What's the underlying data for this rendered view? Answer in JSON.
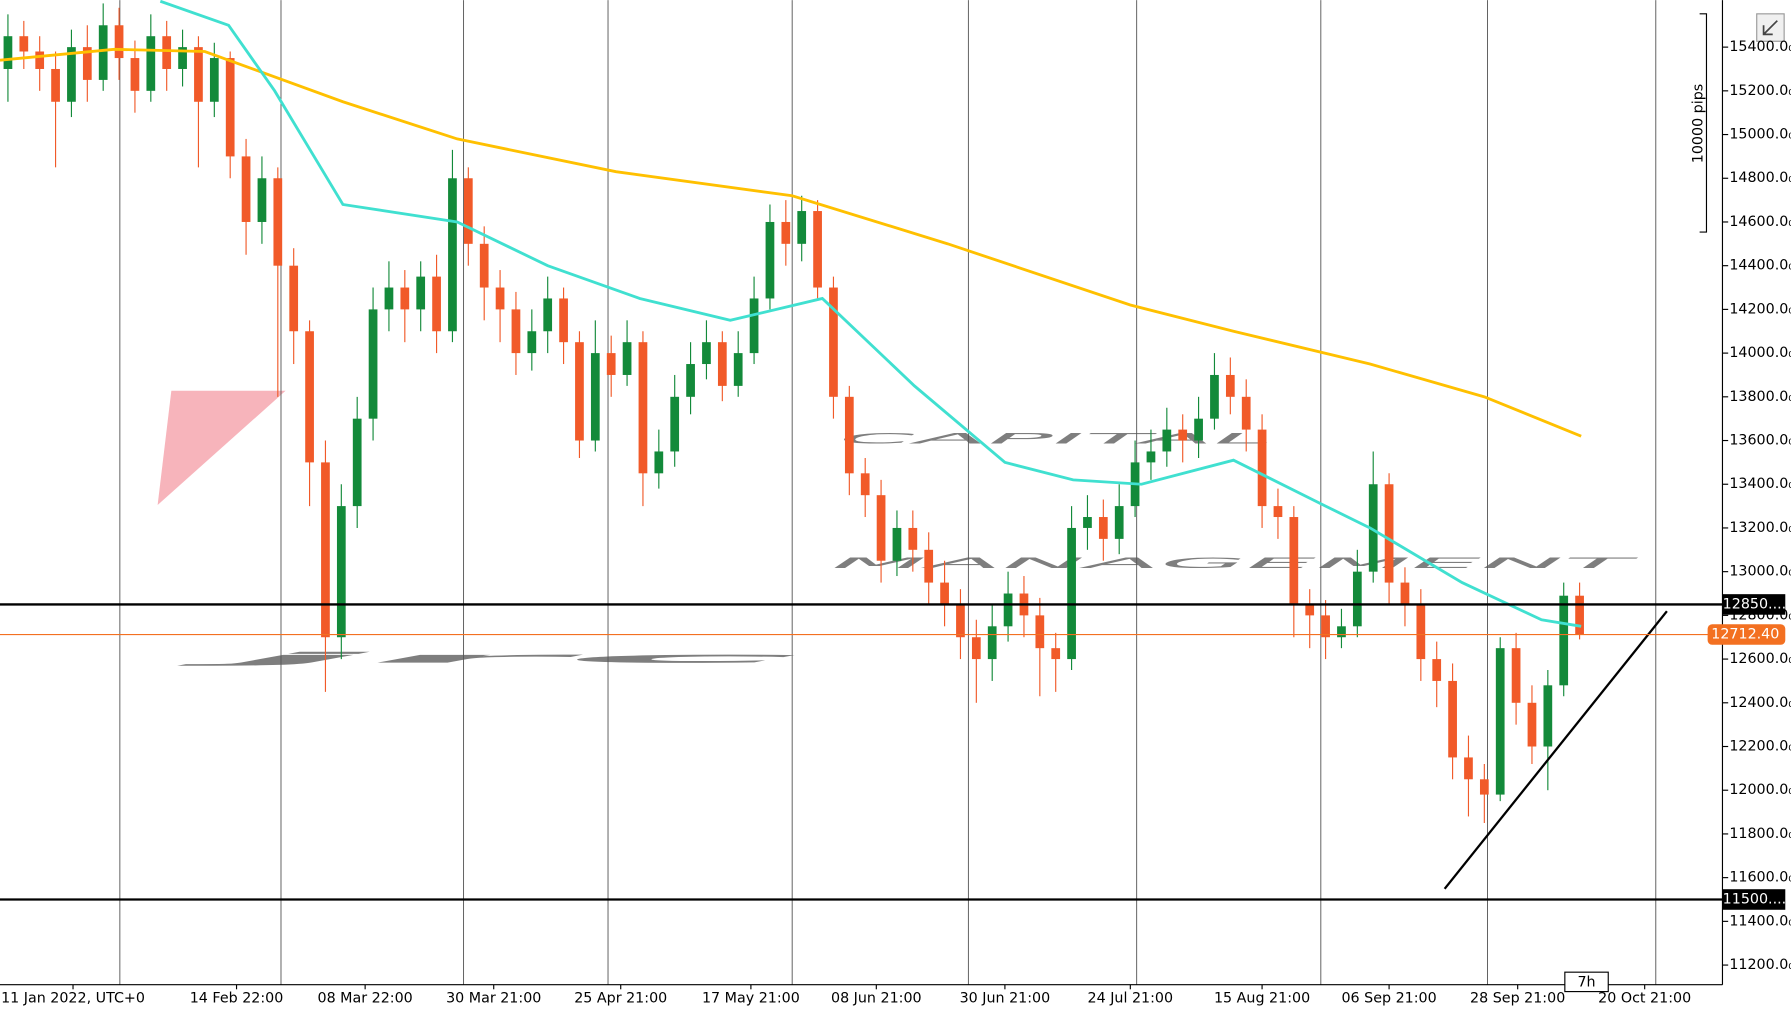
{
  "chart_data": {
    "type": "candlestick",
    "xlim": [
      -0.5,
      108
    ],
    "ylim": [
      11110,
      15615
    ],
    "xticks": [
      {
        "value": 4.1,
        "label": "11 Jan 2022, UTC+0"
      },
      {
        "value": 14.4,
        "label": "14 Feb 22:00"
      },
      {
        "value": 22.5,
        "label": "08 Mar 22:00"
      },
      {
        "value": 30.6,
        "label": "30 Mar 21:00"
      },
      {
        "value": 38.6,
        "label": "25 Apr 21:00"
      },
      {
        "value": 46.8,
        "label": "17 May 21:00"
      },
      {
        "value": 54.7,
        "label": "08 Jun 21:00"
      },
      {
        "value": 62.8,
        "label": "30 Jun 21:00"
      },
      {
        "value": 70.7,
        "label": "24 Jul 21:00"
      },
      {
        "value": 79,
        "label": "15 Aug 21:00"
      },
      {
        "value": 87,
        "label": "06 Sep 21:00"
      },
      {
        "value": 95.1,
        "label": "28 Sep 21:00"
      },
      {
        "value": 103.1,
        "label": "20 Oct 21:00"
      }
    ],
    "vgrid": [
      7.05,
      17.2,
      28.7,
      37.8,
      49.4,
      60.5,
      71.1,
      82.7,
      93.2,
      103.8
    ],
    "yticks": [
      {
        "value": 11200,
        "label": "11200.0₀"
      },
      {
        "value": 11400,
        "label": "11400.0₀"
      },
      {
        "value": 11600,
        "label": "11600.0₀"
      },
      {
        "value": 11800,
        "label": "11800.0₀"
      },
      {
        "value": 12000,
        "label": "12000.0₀"
      },
      {
        "value": 12200,
        "label": "12200.0₀"
      },
      {
        "value": 12400,
        "label": "12400.0₀"
      },
      {
        "value": 12600,
        "label": "12600.0₀"
      },
      {
        "value": 12800,
        "label": "12800.0₀"
      },
      {
        "value": 13000,
        "label": "13000.0₀"
      },
      {
        "value": 13200,
        "label": "13200.0₀"
      },
      {
        "value": 13400,
        "label": "13400.0₀"
      },
      {
        "value": 13600,
        "label": "13600.0₀"
      },
      {
        "value": 13800,
        "label": "13800.0₀"
      },
      {
        "value": 14000,
        "label": "14000.0₀"
      },
      {
        "value": 14200,
        "label": "14200.0₀"
      },
      {
        "value": 14400,
        "label": "14400.0₀"
      },
      {
        "value": 14600,
        "label": "14600.0₀"
      },
      {
        "value": 14800,
        "label": "14800.0₀"
      },
      {
        "value": 15000,
        "label": "15000.0₀"
      },
      {
        "value": 15200,
        "label": "15200.0₀"
      },
      {
        "value": 15400,
        "label": "15400.0₀"
      }
    ],
    "up_color": "#138a3a",
    "down_color": "#f15a29",
    "open": [
      15300,
      15450,
      15380,
      15300,
      15150,
      15400,
      15250,
      15500,
      15350,
      15200,
      15450,
      15300,
      15400,
      15150,
      15350,
      14900,
      14600,
      14800,
      14400,
      14100,
      13500,
      12700,
      13300,
      13700,
      14200,
      14300,
      14200,
      14350,
      14100,
      14800,
      14500,
      14300,
      14200,
      14000,
      14100,
      14250,
      14050,
      13600,
      14000,
      13900,
      14050,
      13450,
      13550,
      13800,
      13950,
      14050,
      13850,
      14000,
      14250,
      14600,
      14500,
      14650,
      14300,
      13800,
      13450,
      13350,
      13050,
      13200,
      13100,
      12950,
      12850,
      12700,
      12600,
      12750,
      12900,
      12800,
      12650,
      12600,
      13200,
      13250,
      13150,
      13300,
      13500,
      13550,
      13650,
      13600,
      13700,
      13900,
      13800,
      13650,
      13300,
      13250,
      12850,
      12800,
      12700,
      12750,
      13000,
      13400,
      12950,
      12850,
      12600,
      12500,
      12150,
      12050,
      11980,
      12650,
      12400,
      12200,
      12480,
      12890
    ],
    "high": [
      15550,
      15520,
      15450,
      15380,
      15480,
      15500,
      15600,
      15580,
      15430,
      15550,
      15520,
      15480,
      15450,
      15420,
      15380,
      14980,
      14900,
      14850,
      14480,
      14150,
      13600,
      13400,
      13800,
      14300,
      14420,
      14380,
      14420,
      14450,
      14930,
      14850,
      14580,
      14380,
      14280,
      14200,
      14350,
      14300,
      14100,
      14150,
      14080,
      14150,
      14100,
      13650,
      13900,
      14050,
      14150,
      14100,
      14100,
      14350,
      14680,
      14700,
      14720,
      14700,
      14350,
      13850,
      13520,
      13420,
      13280,
      13280,
      13180,
      13050,
      12920,
      12780,
      12850,
      13000,
      12980,
      12880,
      12720,
      13300,
      13350,
      13330,
      13400,
      13600,
      13650,
      13750,
      13720,
      13800,
      14000,
      13980,
      13880,
      13720,
      13380,
      13300,
      12920,
      12870,
      12830,
      13100,
      13550,
      13450,
      13020,
      12920,
      12680,
      12580,
      12250,
      12120,
      12700,
      12720,
      12480,
      12550,
      12950,
      12950
    ],
    "low": [
      15150,
      15300,
      15200,
      14850,
      15080,
      15150,
      15200,
      15250,
      15100,
      15150,
      15200,
      15220,
      14850,
      15080,
      14800,
      14450,
      14500,
      13800,
      13950,
      13300,
      12450,
      12600,
      13200,
      13600,
      14100,
      14050,
      14100,
      14000,
      14050,
      14400,
      14150,
      14050,
      13900,
      13920,
      14000,
      13950,
      13520,
      13550,
      13800,
      13850,
      13300,
      13380,
      13480,
      13720,
      13880,
      13780,
      13800,
      13950,
      14200,
      14400,
      14420,
      14250,
      13700,
      13350,
      13250,
      12950,
      12980,
      13000,
      12850,
      12750,
      12600,
      12400,
      12500,
      12680,
      12700,
      12430,
      12450,
      12550,
      13100,
      13050,
      13080,
      13250,
      13420,
      13480,
      13500,
      13520,
      13650,
      13720,
      13550,
      13200,
      13150,
      12700,
      12650,
      12600,
      12650,
      12700,
      12950,
      12850,
      12750,
      12500,
      12380,
      12050,
      11880,
      11850,
      11950,
      12300,
      12120,
      12000,
      12430,
      12690
    ],
    "close": [
      15450,
      15380,
      15300,
      15150,
      15400,
      15250,
      15500,
      15350,
      15200,
      15450,
      15300,
      15400,
      15150,
      15350,
      14900,
      14600,
      14800,
      14400,
      14100,
      13500,
      12700,
      13300,
      13700,
      14200,
      14300,
      14200,
      14350,
      14100,
      14800,
      14500,
      14300,
      14200,
      14000,
      14100,
      14250,
      14050,
      13600,
      14000,
      13900,
      14050,
      13450,
      13550,
      13800,
      13950,
      14050,
      13850,
      14000,
      14250,
      14600,
      14500,
      14650,
      14300,
      13800,
      13450,
      13350,
      13050,
      13200,
      13100,
      12950,
      12850,
      12700,
      12600,
      12750,
      12900,
      12800,
      12650,
      12600,
      13200,
      13250,
      13150,
      13300,
      13500,
      13550,
      13650,
      13600,
      13700,
      13900,
      13800,
      13650,
      13300,
      13250,
      12850,
      12800,
      12700,
      12750,
      13000,
      13400,
      12950,
      12850,
      12600,
      12500,
      12150,
      12050,
      11980,
      12650,
      12400,
      12200,
      12480,
      12890,
      12712.4
    ],
    "lines": [
      {
        "color": "#ffc000",
        "x": [
          -0.5,
          6.7,
          12.4,
          21.1,
          28.3,
          38.3,
          49.4,
          59.2,
          70.7,
          77.2,
          85.8,
          93.0,
          99.1
        ],
        "values": [
          15340,
          15390,
          15380,
          15150,
          14980,
          14830,
          14720,
          14500,
          14220,
          14100,
          13950,
          13800,
          13620
        ]
      },
      {
        "color": "#40e0d0",
        "x": [
          9.6,
          13.9,
          16.8,
          21.1,
          28.3,
          34.0,
          39.8,
          45.5,
          51.3,
          57.1,
          62.8,
          67.1,
          71.4,
          77.2,
          83.0,
          85.8,
          91.6,
          96.6,
          99.1
        ],
        "values": [
          15610,
          15500,
          15200,
          14680,
          14600,
          14400,
          14250,
          14150,
          14250,
          13850,
          13500,
          13420,
          13400,
          13510,
          13300,
          13200,
          12950,
          12780,
          12750
        ]
      },
      {
        "color": "#000000",
        "x": [
          90.5,
          104.5
        ],
        "values": [
          11549,
          12819
        ]
      }
    ],
    "levels": [
      {
        "value": 12850,
        "label": "12850....",
        "color": "#000000"
      },
      {
        "value": 11500,
        "label": "11500....",
        "color": "#000000"
      },
      {
        "value": 12712.4,
        "label": "12712.40",
        "color": "#f37021"
      }
    ]
  },
  "overlay": {
    "logo": "jrc",
    "line1": "CAPITAL",
    "line2": "MANAGEMENT",
    "scale_label": "10000 pips",
    "timeframe_badge": "7h"
  }
}
